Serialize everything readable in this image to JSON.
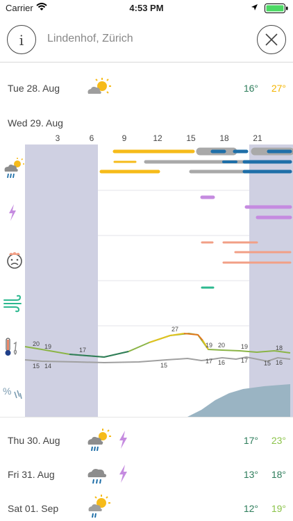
{
  "status_bar": {
    "carrier": "Carrier",
    "time": "4:53 PM"
  },
  "header": {
    "location": "Lindenhof, Zürich"
  },
  "days": [
    {
      "label": "Tue 28. Aug",
      "min": "16°",
      "max": "27°",
      "min_color": "#2e7d5b",
      "max_color": "#f4b400",
      "icon": "partly-cloudy-icon",
      "lightning": false
    },
    {
      "label": "Thu 30. Aug",
      "min": "17°",
      "max": "23°",
      "min_color": "#2e7d5b",
      "max_color": "#8bc34a",
      "icon": "sun-cloud-rain-icon",
      "lightning": true
    },
    {
      "label": "Fri 31. Aug",
      "min": "13°",
      "max": "18°",
      "min_color": "#2e7d5b",
      "max_color": "#2e7d5b",
      "icon": "cloud-rain-icon",
      "lightning": true
    },
    {
      "label": "Sat 01. Sep",
      "min": "12°",
      "max": "19°",
      "min_color": "#2e7d5b",
      "max_color": "#8bc34a",
      "icon": "sun-cloud-rain-icon",
      "lightning": false
    }
  ],
  "detail_day": {
    "label": "Wed 29. Aug",
    "hours": [
      "3",
      "6",
      "9",
      "12",
      "15",
      "18",
      "21"
    ],
    "rows": [
      {
        "icon": "sun-cloud-rain-icon"
      },
      {
        "icon": "lightning-icon"
      },
      {
        "icon": "hot-face-icon"
      },
      {
        "icon": "wind-icon"
      },
      {
        "icon": "thermometer-icon"
      },
      {
        "icon": "humidity-rain-icon"
      }
    ],
    "temperature_labels": {
      "upper": [
        "20",
        "19",
        "17",
        "27",
        "19",
        "20",
        "19",
        "18"
      ],
      "lower": [
        "15",
        "14",
        "15",
        "17",
        "16",
        "17",
        "15",
        "16"
      ]
    }
  },
  "colors": {
    "night": "#cfd0e2",
    "sun": "#f6bb1a",
    "cloud": "#a9a9a9",
    "rain": "#1f6fa8",
    "lightning": "#c58be0",
    "heat": "#f29f86",
    "wind": "#2cb88f",
    "humidity": "#9ab4c3"
  }
}
